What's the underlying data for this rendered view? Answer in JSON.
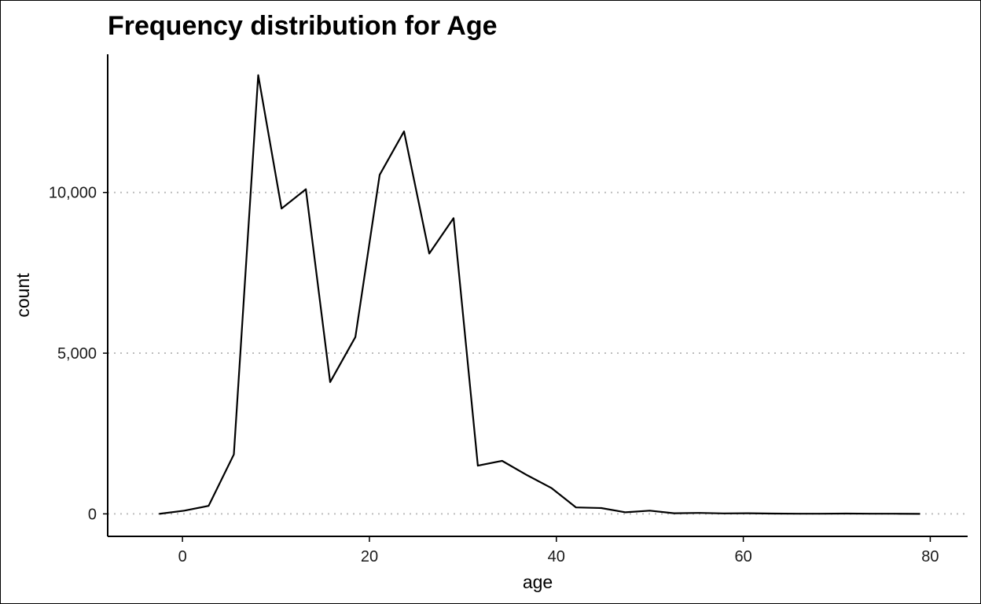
{
  "chart_data": {
    "type": "line",
    "title": "Frequency distribution for Age",
    "xlabel": "age",
    "ylabel": "count",
    "xlim": [
      -8,
      84
    ],
    "ylim": [
      -700,
      14300
    ],
    "x_ticks": [
      0,
      20,
      40,
      60,
      80
    ],
    "y_ticks": [
      0,
      5000,
      10000
    ],
    "x_tick_labels": [
      "0",
      "20",
      "40",
      "60",
      "80"
    ],
    "y_tick_labels": [
      "0",
      "5,000",
      "10,000"
    ],
    "grid": "horizontal-dotted",
    "line_color": "#000000",
    "series": [
      {
        "x": [
          -2.5,
          0.2,
          2.8,
          5.5,
          8.1,
          10.6,
          13.2,
          15.8,
          18.5,
          21.1,
          23.7,
          26.4,
          29.0,
          31.6,
          34.2,
          36.9,
          39.5,
          42.1,
          44.8,
          47.4,
          50.0,
          52.6,
          55.3,
          57.9,
          60.5,
          63.1,
          65.8,
          68.4,
          71.0,
          73.7,
          76.3,
          78.9
        ],
        "values": [
          0,
          100,
          250,
          1850,
          13650,
          9500,
          10100,
          4100,
          5500,
          10550,
          11900,
          8100,
          9200,
          1500,
          1650,
          1200,
          800,
          200,
          180,
          50,
          100,
          20,
          30,
          15,
          20,
          10,
          5,
          5,
          10,
          5,
          5,
          0
        ]
      }
    ]
  }
}
